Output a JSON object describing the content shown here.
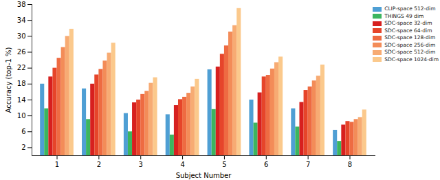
{
  "chart_data": {
    "type": "bar",
    "y_label": "Accuracy (top-1 %)",
    "x_label": "Subject Number",
    "categories": [
      "1",
      "2",
      "3",
      "4",
      "5",
      "6",
      "7",
      "8"
    ],
    "series": [
      {
        "name": "CLIP-space 512-dim",
        "color": "#4f9fd4",
        "values": [
          18.0,
          16.8,
          10.6,
          10.3,
          21.6,
          14.0,
          11.8,
          6.4
        ]
      },
      {
        "name": "THINGS 49 dim",
        "color": "#3cb55f",
        "values": [
          11.8,
          9.1,
          6.0,
          5.2,
          11.6,
          8.2,
          7.2,
          3.6
        ]
      },
      {
        "name": "SDC-space 32-dim",
        "color": "#d7201f",
        "values": [
          19.8,
          18.0,
          13.3,
          12.6,
          22.3,
          15.8,
          13.4,
          7.7
        ]
      },
      {
        "name": "SDC-space 64-dim",
        "color": "#e6452a",
        "values": [
          22.0,
          20.3,
          14.0,
          14.1,
          25.5,
          19.8,
          16.4,
          8.6
        ]
      },
      {
        "name": "SDC-space 128-dim",
        "color": "#ee6b42",
        "values": [
          24.5,
          21.7,
          15.4,
          14.7,
          27.6,
          20.2,
          17.3,
          8.4
        ]
      },
      {
        "name": "SDC-space 256-dim",
        "color": "#f38c58",
        "values": [
          27.2,
          23.8,
          16.2,
          15.7,
          31.1,
          21.8,
          18.8,
          9.1
        ]
      },
      {
        "name": "SDC-space 512-dim",
        "color": "#f7ab73",
        "values": [
          30.0,
          25.8,
          18.2,
          17.3,
          32.7,
          23.4,
          20.0,
          9.6
        ]
      },
      {
        "name": "SDC-space 1024-dim",
        "color": "#fbc98c",
        "values": [
          31.8,
          28.3,
          19.6,
          19.2,
          37.0,
          24.8,
          22.8,
          11.5
        ]
      }
    ],
    "ylim": [
      0,
      38
    ],
    "yticks": [
      2,
      6,
      10,
      14,
      18,
      22,
      26,
      30,
      34,
      38
    ],
    "grid": false,
    "legend": "top-right"
  }
}
